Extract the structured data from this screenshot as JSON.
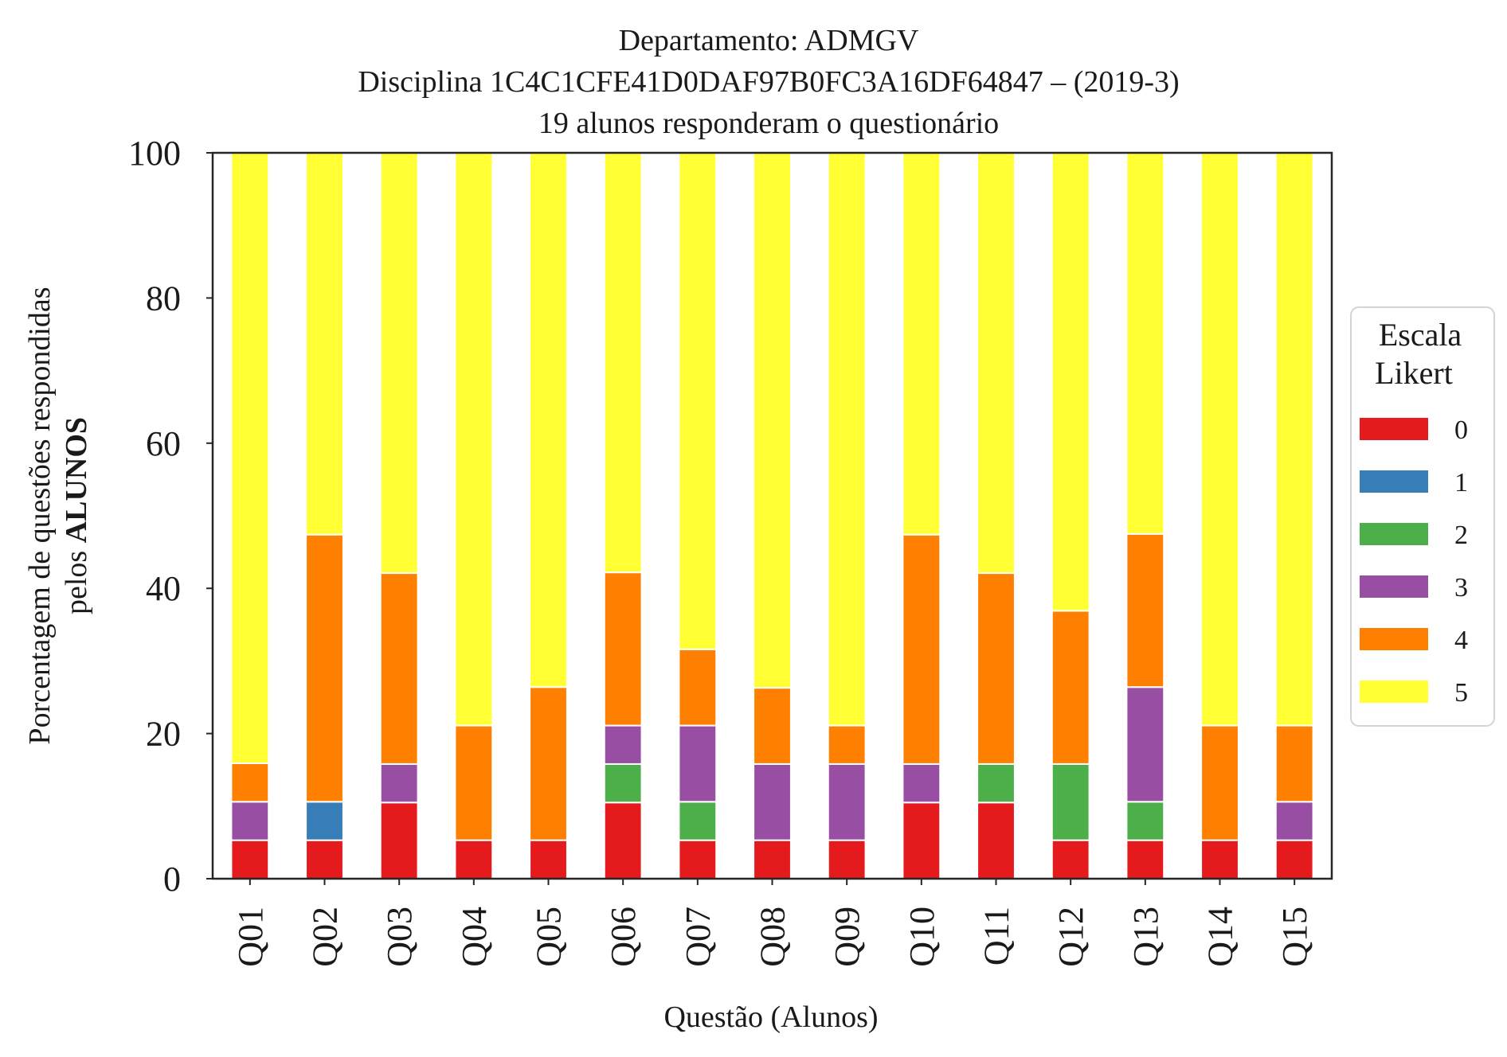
{
  "chart_data": {
    "type": "bar",
    "stacked": true,
    "title_lines": [
      "Departamento: ADMGV",
      "Disciplina 1C4C1CFE41D0DAF97B0FC3A16DF64847 – (2019-3)",
      "19 alunos responderam o questionário"
    ],
    "xlabel": "Questão (Alunos)",
    "ylabel_line1": "Porcentagem de questões respondidas",
    "ylabel_line2_prefix": "pelos ",
    "ylabel_line2_bold": "ALUNOS",
    "ylim": [
      0,
      100
    ],
    "yticks": [
      "0",
      "20",
      "40",
      "60",
      "80",
      "100"
    ],
    "grid": false,
    "legend_placement": "right",
    "legend_title_lines": [
      "Escala",
      "Likert"
    ],
    "categories": [
      "Q01",
      "Q02",
      "Q03",
      "Q04",
      "Q05",
      "Q06",
      "Q07",
      "Q08",
      "Q09",
      "Q10",
      "Q11",
      "Q12",
      "Q13",
      "Q14",
      "Q15"
    ],
    "series": [
      {
        "name": "0",
        "color": "#e41a1c",
        "values": [
          5.3,
          5.3,
          10.5,
          5.3,
          5.3,
          10.5,
          5.3,
          5.3,
          5.3,
          10.5,
          10.5,
          5.3,
          5.3,
          5.3,
          5.3
        ]
      },
      {
        "name": "1",
        "color": "#377eb8",
        "values": [
          0,
          5.3,
          0,
          0,
          0,
          0,
          0,
          0,
          0,
          0,
          0,
          0,
          0,
          0,
          0
        ]
      },
      {
        "name": "2",
        "color": "#4daf4a",
        "values": [
          0,
          0,
          0,
          0,
          0,
          5.3,
          5.3,
          0,
          0,
          0,
          5.3,
          10.5,
          5.3,
          0,
          0
        ]
      },
      {
        "name": "3",
        "color": "#984ea3",
        "values": [
          5.3,
          0,
          5.3,
          0,
          0,
          5.3,
          10.5,
          10.5,
          10.5,
          5.3,
          0,
          0,
          15.8,
          0,
          5.3
        ]
      },
      {
        "name": "4",
        "color": "#ff7f00",
        "values": [
          5.3,
          36.8,
          26.3,
          15.8,
          21.1,
          21.1,
          10.5,
          10.5,
          5.3,
          31.6,
          26.3,
          21.1,
          21.1,
          15.8,
          10.5
        ]
      },
      {
        "name": "5",
        "color": "#ffff33",
        "values": [
          84.2,
          52.6,
          57.9,
          78.9,
          73.7,
          57.9,
          68.4,
          73.7,
          78.9,
          52.6,
          57.9,
          63.2,
          52.6,
          78.9,
          78.9
        ]
      }
    ]
  }
}
